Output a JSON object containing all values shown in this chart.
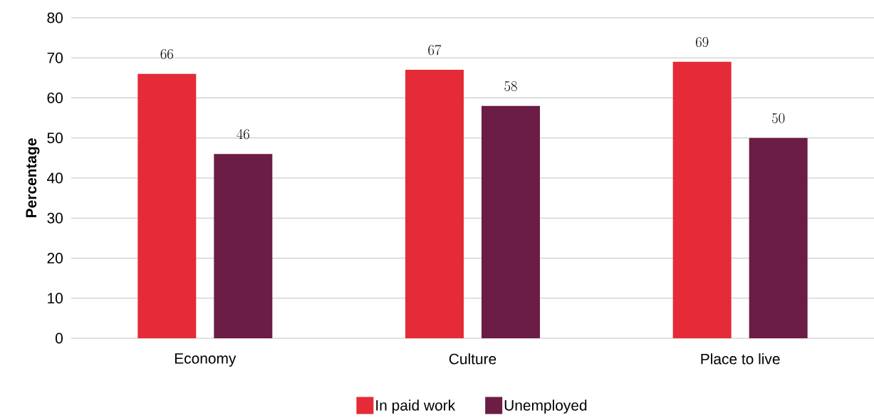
{
  "chart_data": {
    "type": "bar",
    "ylabel": "Percentage",
    "categories": [
      "Economy",
      "Culture",
      "Place to live"
    ],
    "series": [
      {
        "name": "In paid work",
        "color": "#e52b38",
        "values": [
          66,
          67,
          69
        ]
      },
      {
        "name": "Unemployed",
        "color": "#6b1d45",
        "values": [
          46,
          58,
          50
        ]
      }
    ],
    "ylim": [
      0,
      80
    ],
    "yticks": [
      0,
      10,
      20,
      30,
      40,
      50,
      60,
      70,
      80
    ],
    "grid": "y",
    "legend": "bottom",
    "data_labels": true
  }
}
